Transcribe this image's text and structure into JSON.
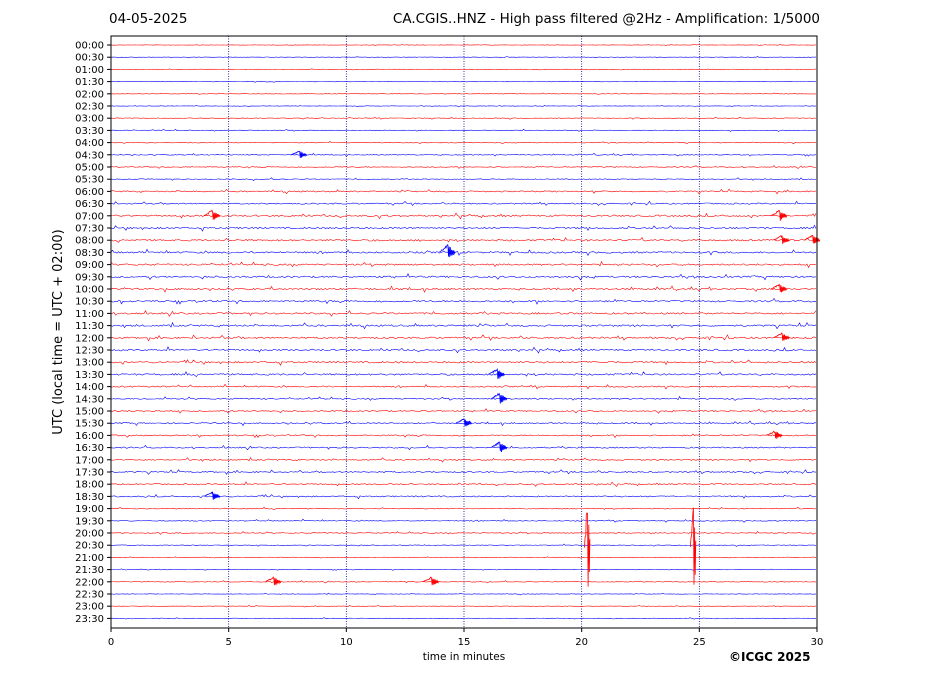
{
  "header": {
    "date": "04-05-2025",
    "title": "CA.CGIS..HNZ - High pass filtered @2Hz - Amplification: 1/5000"
  },
  "footer": {
    "copyright": "©ICGC 2025"
  },
  "colors": {
    "red": "#ff0000",
    "blue": "#0000ff",
    "frame": "#000000",
    "grid": "#000080"
  },
  "chart_data": {
    "type": "line",
    "title": "CA.CGIS..HNZ - High pass filtered @2Hz - Amplification: 1/5000",
    "xlabel": "time in minutes",
    "ylabel": "UTC (local time = UTC + 02:00)",
    "xlim": [
      0,
      30
    ],
    "x_ticks": [
      "0",
      "5",
      "10",
      "15",
      "20",
      "25",
      "30"
    ],
    "vertical_gridlines": [
      5,
      10,
      15,
      20,
      25
    ],
    "trace_colors_alternate": [
      "#ff0000",
      "#0000ff"
    ],
    "traces": [
      "00:00",
      "00:30",
      "01:00",
      "01:30",
      "02:00",
      "02:30",
      "03:00",
      "03:30",
      "04:00",
      "04:30",
      "05:00",
      "05:30",
      "06:00",
      "06:30",
      "07:00",
      "07:30",
      "08:00",
      "08:30",
      "09:00",
      "09:30",
      "10:00",
      "10:30",
      "11:00",
      "11:30",
      "12:00",
      "12:30",
      "13:00",
      "13:30",
      "14:00",
      "14:30",
      "15:00",
      "15:30",
      "16:00",
      "16:30",
      "17:00",
      "17:30",
      "18:00",
      "18:30",
      "19:00",
      "19:30",
      "20:00",
      "20:30",
      "21:00",
      "21:30",
      "22:00",
      "22:30",
      "23:00",
      "23:30"
    ],
    "noise_amplitude": [
      0.5,
      0.5,
      0.5,
      0.5,
      0.5,
      0.5,
      0.8,
      0.8,
      0.8,
      1,
      1,
      1,
      1.5,
      1.5,
      2,
      2,
      2,
      2,
      2,
      2,
      2,
      2,
      2,
      2,
      2,
      2,
      2,
      2,
      1.5,
      1.5,
      1.5,
      1.5,
      1.5,
      1.5,
      1.5,
      1.5,
      1.5,
      1.5,
      1,
      1,
      1,
      0.8,
      0.5,
      0.5,
      0.8,
      0.6,
      0.5,
      0.5
    ],
    "events": [
      {
        "trace": "04:30",
        "minute": 8.0,
        "amplitude": 4
      },
      {
        "trace": "07:00",
        "minute": 4.3,
        "amplitude": 6
      },
      {
        "trace": "07:00",
        "minute": 28.4,
        "amplitude": 6
      },
      {
        "trace": "08:00",
        "minute": 28.5,
        "amplitude": 5
      },
      {
        "trace": "08:00",
        "minute": 29.8,
        "amplitude": 5
      },
      {
        "trace": "08:30",
        "minute": 14.3,
        "amplitude": 8
      },
      {
        "trace": "10:00",
        "minute": 28.4,
        "amplitude": 5
      },
      {
        "trace": "12:00",
        "minute": 28.5,
        "amplitude": 5
      },
      {
        "trace": "13:30",
        "minute": 16.4,
        "amplitude": 6
      },
      {
        "trace": "14:30",
        "minute": 16.5,
        "amplitude": 6
      },
      {
        "trace": "15:30",
        "minute": 15.0,
        "amplitude": 5
      },
      {
        "trace": "16:00",
        "minute": 28.2,
        "amplitude": 5
      },
      {
        "trace": "16:30",
        "minute": 16.5,
        "amplitude": 6
      },
      {
        "trace": "18:30",
        "minute": 4.3,
        "amplitude": 5
      },
      {
        "trace": "22:00",
        "minute": 6.9,
        "amplitude": 5
      },
      {
        "trace": "22:00",
        "minute": 13.6,
        "amplitude": 5
      },
      {
        "trace": "19:00",
        "minute": 20.25,
        "amplitude": 60
      },
      {
        "trace": "19:00",
        "minute": 24.75,
        "amplitude": 60
      }
    ]
  }
}
